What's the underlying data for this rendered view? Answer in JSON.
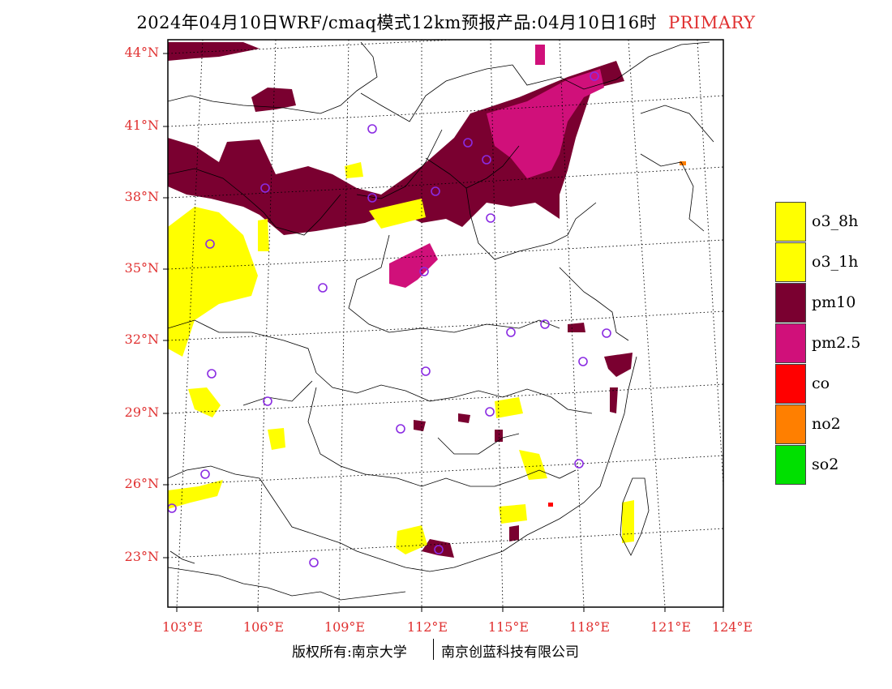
{
  "title": {
    "main": "2024年04月10日WRF/cmaq模式12km预报产品:04月10日16时",
    "tag": "PRIMARY"
  },
  "axes": {
    "lat_labels": [
      "44°N",
      "41°N",
      "38°N",
      "35°N",
      "32°N",
      "29°N",
      "26°N",
      "23°N"
    ],
    "lon_labels": [
      "103°E",
      "106°E",
      "109°E",
      "112°E",
      "115°E",
      "118°E",
      "121°E",
      "124°E"
    ],
    "lat_range": [
      21.0,
      44.3
    ],
    "lon_range": [
      102.5,
      124.2
    ]
  },
  "legend": {
    "items": [
      {
        "label": "o3_8h",
        "color": "#ffff00"
      },
      {
        "label": "o3_1h",
        "color": "#ffff00"
      },
      {
        "label": "pm10",
        "color": "#7a0030"
      },
      {
        "label": "pm2.5",
        "color": "#d0107a"
      },
      {
        "label": "co",
        "color": "#ff0000"
      },
      {
        "label": "no2",
        "color": "#ff7f00"
      },
      {
        "label": "so2",
        "color": "#00e000"
      }
    ]
  },
  "footer": {
    "left": "版权所有:南京大学",
    "right": "南京创蓝科技有限公司"
  },
  "colors": {
    "label_red": "#e03030",
    "frame": "#000000",
    "station_marker": "#8a2be2"
  }
}
